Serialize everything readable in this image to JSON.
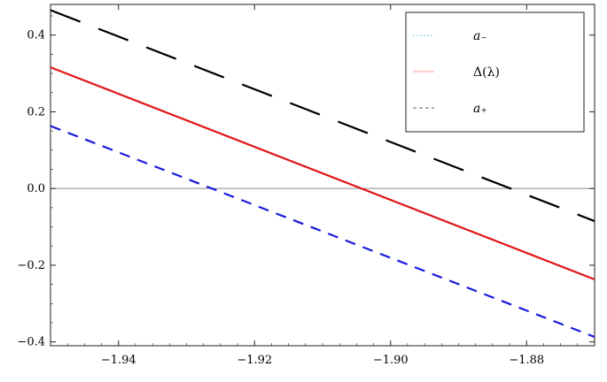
{
  "chart_data": {
    "type": "line",
    "xlim": [
      -1.95,
      -1.87
    ],
    "ylim": [
      -0.41,
      0.48
    ],
    "x_ticks": [
      -1.94,
      -1.92,
      -1.9,
      -1.88
    ],
    "x_tick_labels": [
      "−1.94",
      "−1.92",
      "−1.90",
      "−1.88"
    ],
    "y_ticks": [
      -0.4,
      -0.2,
      0.0,
      0.2,
      0.4
    ],
    "y_tick_labels": [
      "−0.4",
      "−0.2",
      "0.0",
      "0.2",
      "0.4"
    ],
    "zero_line": true,
    "legend_position": "top-right",
    "series": [
      {
        "name": "a₋",
        "color": "#1a1adb",
        "style": "dashed",
        "x": [
          -1.95,
          -1.87
        ],
        "y": [
          0.163,
          -0.387
        ]
      },
      {
        "name": "Δ(λ)",
        "color": "#e01515",
        "style": "solid",
        "x": [
          -1.95,
          -1.87
        ],
        "y": [
          0.316,
          -0.237
        ]
      },
      {
        "name": "a₊",
        "color": "#000000",
        "style": "long-dashed",
        "x": [
          -1.95,
          -1.87
        ],
        "y": [
          0.465,
          -0.085
        ]
      }
    ]
  }
}
